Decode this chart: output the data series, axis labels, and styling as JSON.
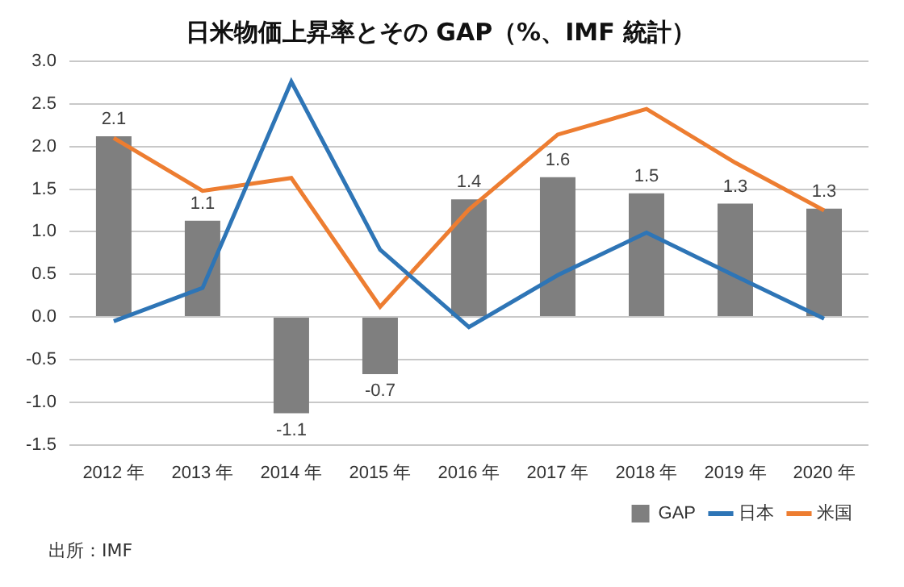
{
  "chart_data": {
    "type": "bar",
    "title": "日米物価上昇率とその GAP（%、IMF 統計）",
    "categories": [
      "2012 年",
      "2013 年",
      "2014 年",
      "2015 年",
      "2016 年",
      "2017 年",
      "2018 年",
      "2019 年",
      "2020 年"
    ],
    "series": [
      {
        "name": "GAP",
        "color": "#7f7f7f",
        "values": [
          2.12,
          1.13,
          -1.13,
          -0.67,
          1.38,
          1.64,
          1.45,
          1.33,
          1.27
        ],
        "value_labels": [
          "2.1",
          "1.1",
          "-1.1",
          "-0.7",
          "1.4",
          "1.6",
          "1.5",
          "1.3",
          "1.3"
        ]
      },
      {
        "name": "日本",
        "type": "line",
        "color": "#2e75b6",
        "values": [
          -0.05,
          0.34,
          2.76,
          0.79,
          -0.12,
          0.49,
          0.99,
          0.48,
          -0.02
        ]
      },
      {
        "name": "米国",
        "type": "line",
        "color": "#ed7d31",
        "values": [
          2.1,
          1.48,
          1.63,
          0.12,
          1.26,
          2.14,
          2.44,
          1.81,
          1.25
        ]
      }
    ],
    "ylim": [
      -1.5,
      3.0
    ],
    "yticks": [
      -1.5,
      {
        "value": -1,
        "label": "-1.0"
      },
      -0.5,
      {
        "value": 0,
        "label": "0.0"
      },
      0.5,
      {
        "value": 1,
        "label": "1.0"
      },
      1.5,
      {
        "value": 2,
        "label": "2.0"
      },
      2.5,
      {
        "value": 3,
        "label": "3.0"
      }
    ],
    "grid": "y",
    "legend": "bottom right",
    "marker": "none",
    "annotations": [
      "出所：IMF"
    ]
  }
}
